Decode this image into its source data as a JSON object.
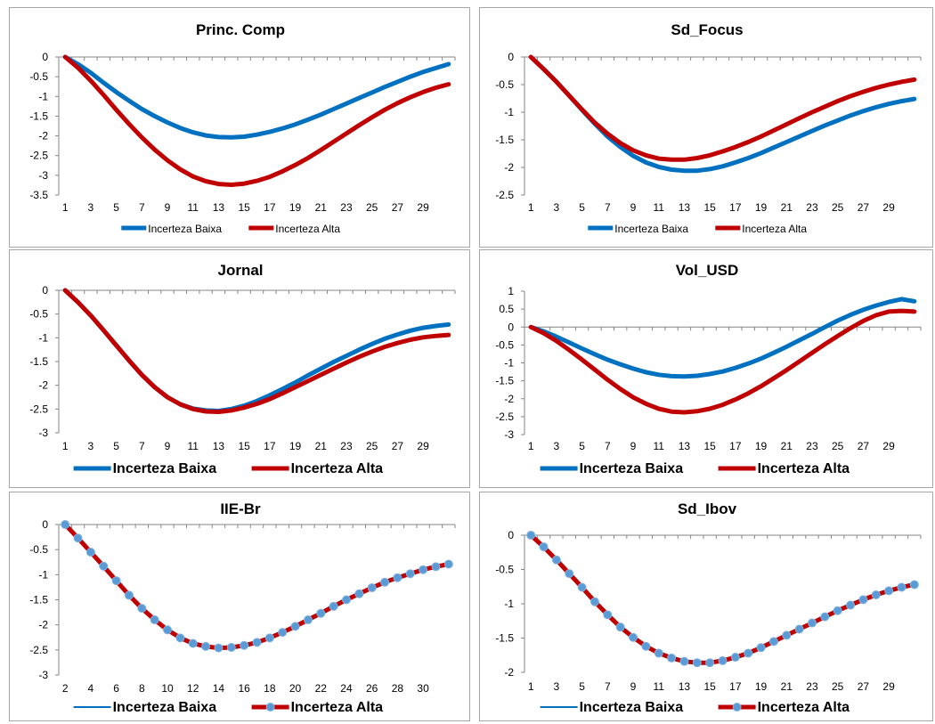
{
  "chart_data": [
    {
      "type": "line",
      "title": "Princ. Comp",
      "xticks": [
        "1",
        "3",
        "5",
        "7",
        "9",
        "11",
        "13",
        "15",
        "17",
        "19",
        "21",
        "23",
        "25",
        "27",
        "29"
      ],
      "x_start": 1,
      "ylim": [
        -3.5,
        0
      ],
      "yticks": [
        "0",
        "-0.5",
        "-1",
        "-1.5",
        "-2",
        "-2.5",
        "-3",
        "-3.5"
      ],
      "legend_size": "small",
      "series": [
        {
          "name": "Incerteza Baixa",
          "color": "#0070c0",
          "marker": false,
          "values": [
            0,
            -0.18,
            -0.4,
            -0.65,
            -0.89,
            -1.11,
            -1.32,
            -1.5,
            -1.66,
            -1.8,
            -1.91,
            -1.99,
            -2.03,
            -2.04,
            -2.02,
            -1.97,
            -1.9,
            -1.81,
            -1.71,
            -1.59,
            -1.46,
            -1.32,
            -1.18,
            -1.04,
            -0.9,
            -0.76,
            -0.63,
            -0.5,
            -0.38,
            -0.28,
            -0.18
          ]
        },
        {
          "name": "Incerteza Alta",
          "color": "#c00000",
          "marker": false,
          "values": [
            0,
            -0.27,
            -0.6,
            -0.96,
            -1.34,
            -1.7,
            -2.04,
            -2.35,
            -2.62,
            -2.85,
            -3.03,
            -3.15,
            -3.22,
            -3.24,
            -3.21,
            -3.14,
            -3.04,
            -2.9,
            -2.74,
            -2.56,
            -2.36,
            -2.15,
            -1.94,
            -1.73,
            -1.53,
            -1.34,
            -1.17,
            -1.02,
            -0.89,
            -0.78,
            -0.69
          ]
        }
      ]
    },
    {
      "type": "line",
      "title": "Sd_Focus",
      "xticks": [
        "1",
        "3",
        "5",
        "7",
        "9",
        "11",
        "13",
        "15",
        "17",
        "19",
        "21",
        "23",
        "25",
        "27",
        "29"
      ],
      "x_start": 1,
      "ylim": [
        -2.5,
        0
      ],
      "yticks": [
        "0",
        "-0.5",
        "-1",
        "-1.5",
        "-2",
        "-2.5"
      ],
      "legend_size": "small",
      "series": [
        {
          "name": "Incerteza Baixa",
          "color": "#0070c0",
          "marker": false,
          "values": [
            0,
            -0.22,
            -0.45,
            -0.7,
            -0.96,
            -1.21,
            -1.44,
            -1.63,
            -1.79,
            -1.91,
            -1.99,
            -2.04,
            -2.06,
            -2.06,
            -2.03,
            -1.98,
            -1.91,
            -1.83,
            -1.74,
            -1.64,
            -1.54,
            -1.44,
            -1.34,
            -1.24,
            -1.15,
            -1.06,
            -0.98,
            -0.91,
            -0.85,
            -0.8,
            -0.76
          ]
        },
        {
          "name": "Incerteza Alta",
          "color": "#c00000",
          "marker": false,
          "values": [
            0,
            -0.22,
            -0.45,
            -0.7,
            -0.95,
            -1.19,
            -1.39,
            -1.56,
            -1.69,
            -1.78,
            -1.84,
            -1.86,
            -1.86,
            -1.83,
            -1.78,
            -1.71,
            -1.63,
            -1.54,
            -1.44,
            -1.33,
            -1.22,
            -1.11,
            -1.0,
            -0.9,
            -0.8,
            -0.71,
            -0.63,
            -0.56,
            -0.5,
            -0.45,
            -0.41
          ]
        }
      ]
    },
    {
      "type": "line",
      "title": "Jornal",
      "xticks": [
        "1",
        "3",
        "5",
        "7",
        "9",
        "11",
        "13",
        "15",
        "17",
        "19",
        "21",
        "23",
        "25",
        "27",
        "29"
      ],
      "x_start": 1,
      "ylim": [
        -3,
        0
      ],
      "yticks": [
        "0",
        "-0.5",
        "-1",
        "-1.5",
        "-2",
        "-2.5",
        "-3"
      ],
      "legend_size": "big",
      "series": [
        {
          "name": "Incerteza Baixa",
          "color": "#0070c0",
          "marker": false,
          "values": [
            0,
            -0.25,
            -0.53,
            -0.84,
            -1.16,
            -1.48,
            -1.78,
            -2.04,
            -2.25,
            -2.4,
            -2.49,
            -2.53,
            -2.54,
            -2.5,
            -2.43,
            -2.33,
            -2.21,
            -2.08,
            -1.94,
            -1.79,
            -1.65,
            -1.51,
            -1.38,
            -1.25,
            -1.13,
            -1.02,
            -0.93,
            -0.85,
            -0.79,
            -0.75,
            -0.72
          ]
        },
        {
          "name": "Incerteza Alta",
          "color": "#c00000",
          "marker": false,
          "values": [
            0,
            -0.25,
            -0.53,
            -0.84,
            -1.16,
            -1.48,
            -1.78,
            -2.04,
            -2.25,
            -2.4,
            -2.5,
            -2.55,
            -2.56,
            -2.53,
            -2.47,
            -2.39,
            -2.29,
            -2.17,
            -2.04,
            -1.91,
            -1.78,
            -1.65,
            -1.52,
            -1.4,
            -1.29,
            -1.19,
            -1.11,
            -1.04,
            -0.99,
            -0.96,
            -0.94
          ]
        }
      ]
    },
    {
      "type": "line",
      "title": "Vol_USD",
      "xticks": [
        "1",
        "3",
        "5",
        "7",
        "9",
        "11",
        "13",
        "15",
        "17",
        "19",
        "21",
        "23",
        "25",
        "27",
        "29"
      ],
      "x_start": 1,
      "ylim": [
        -3,
        1
      ],
      "yticks": [
        "1",
        "0.5",
        "0",
        "-0.5",
        "-1",
        "-1.5",
        "-2",
        "-2.5",
        "-3"
      ],
      "legend_size": "big",
      "series": [
        {
          "name": "Incerteza Baixa",
          "color": "#0070c0",
          "marker": false,
          "values": [
            0,
            -0.12,
            -0.27,
            -0.43,
            -0.6,
            -0.76,
            -0.91,
            -1.04,
            -1.16,
            -1.26,
            -1.33,
            -1.37,
            -1.38,
            -1.36,
            -1.31,
            -1.24,
            -1.14,
            -1.02,
            -0.88,
            -0.72,
            -0.55,
            -0.37,
            -0.19,
            0.0,
            0.18,
            0.34,
            0.48,
            0.6,
            0.7,
            0.78,
            0.72
          ]
        },
        {
          "name": "Incerteza Alta",
          "color": "#c00000",
          "marker": false,
          "values": [
            0,
            -0.17,
            -0.39,
            -0.64,
            -0.91,
            -1.19,
            -1.47,
            -1.73,
            -1.96,
            -2.14,
            -2.28,
            -2.36,
            -2.38,
            -2.35,
            -2.28,
            -2.17,
            -2.02,
            -1.85,
            -1.65,
            -1.43,
            -1.2,
            -0.96,
            -0.72,
            -0.48,
            -0.25,
            -0.03,
            0.17,
            0.33,
            0.43,
            0.45,
            0.43
          ]
        }
      ]
    },
    {
      "type": "line",
      "title": "IIE-Br",
      "xticks": [
        "2",
        "4",
        "6",
        "8",
        "10",
        "12",
        "14",
        "16",
        "18",
        "20",
        "22",
        "24",
        "26",
        "28",
        "30"
      ],
      "x_start": 2,
      "ylim": [
        -3,
        0
      ],
      "yticks": [
        "0",
        "-0.5",
        "-1",
        "-1.5",
        "-2",
        "-2.5",
        "-3"
      ],
      "legend_size": "big",
      "series": [
        {
          "name": "Incerteza Baixa",
          "color": "#0070c0",
          "marker": false,
          "values": [
            0,
            -0.27,
            -0.55,
            -0.83,
            -1.12,
            -1.41,
            -1.67,
            -1.9,
            -2.1,
            -2.26,
            -2.37,
            -2.43,
            -2.46,
            -2.45,
            -2.41,
            -2.35,
            -2.26,
            -2.15,
            -2.03,
            -1.9,
            -1.77,
            -1.63,
            -1.5,
            -1.38,
            -1.26,
            -1.15,
            -1.06,
            -0.98,
            -0.9,
            -0.84,
            -0.79
          ]
        },
        {
          "name": "Incerteza Alta",
          "color": "#c00000",
          "marker": true,
          "values": [
            0,
            -0.27,
            -0.55,
            -0.83,
            -1.12,
            -1.41,
            -1.67,
            -1.9,
            -2.1,
            -2.26,
            -2.37,
            -2.43,
            -2.46,
            -2.45,
            -2.41,
            -2.35,
            -2.26,
            -2.15,
            -2.03,
            -1.9,
            -1.77,
            -1.63,
            -1.5,
            -1.38,
            -1.26,
            -1.15,
            -1.06,
            -0.98,
            -0.9,
            -0.84,
            -0.79
          ]
        }
      ]
    },
    {
      "type": "line",
      "title": "Sd_Ibov",
      "xticks": [
        "1",
        "3",
        "5",
        "7",
        "9",
        "11",
        "13",
        "15",
        "17",
        "19",
        "21",
        "23",
        "25",
        "27",
        "29"
      ],
      "x_start": 1,
      "ylim": [
        -2,
        0
      ],
      "yticks": [
        "0",
        "-0.5",
        "-1",
        "-1.5",
        "-2"
      ],
      "legend_size": "big",
      "series": [
        {
          "name": "Incerteza Baixa",
          "color": "#0070c0",
          "marker": false,
          "values": [
            0,
            -0.17,
            -0.36,
            -0.56,
            -0.76,
            -0.97,
            -1.16,
            -1.34,
            -1.49,
            -1.62,
            -1.72,
            -1.79,
            -1.84,
            -1.86,
            -1.86,
            -1.83,
            -1.78,
            -1.72,
            -1.64,
            -1.55,
            -1.46,
            -1.37,
            -1.28,
            -1.19,
            -1.1,
            -1.02,
            -0.94,
            -0.87,
            -0.81,
            -0.76,
            -0.72
          ]
        },
        {
          "name": "Incerteza Alta",
          "color": "#c00000",
          "marker": true,
          "values": [
            0,
            -0.17,
            -0.36,
            -0.56,
            -0.76,
            -0.97,
            -1.16,
            -1.34,
            -1.49,
            -1.62,
            -1.72,
            -1.79,
            -1.84,
            -1.86,
            -1.86,
            -1.83,
            -1.78,
            -1.72,
            -1.64,
            -1.55,
            -1.46,
            -1.37,
            -1.28,
            -1.19,
            -1.1,
            -1.02,
            -0.94,
            -0.87,
            -0.81,
            -0.76,
            -0.72
          ]
        }
      ]
    }
  ]
}
